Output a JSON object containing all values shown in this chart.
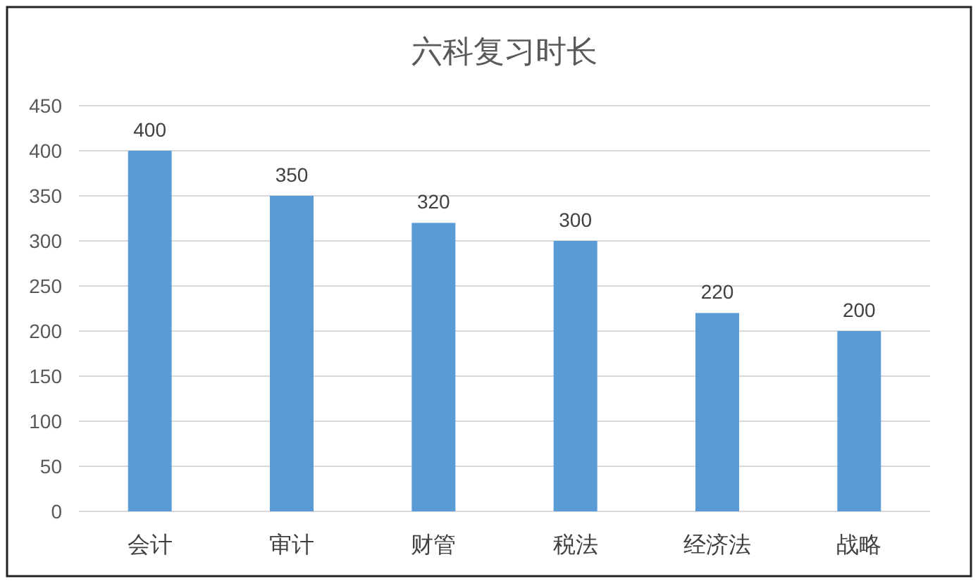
{
  "chart_data": {
    "type": "bar",
    "title": "六科复习时长",
    "categories": [
      "会计",
      "审计",
      "财管",
      "税法",
      "经济法",
      "战略"
    ],
    "values": [
      400,
      350,
      320,
      300,
      220,
      200
    ],
    "color": "#5b9bd5",
    "ylim": [
      0,
      450
    ],
    "yticks": [
      0,
      50,
      100,
      150,
      200,
      250,
      300,
      350,
      400,
      450
    ],
    "grid": "y",
    "data_labels": true
  }
}
